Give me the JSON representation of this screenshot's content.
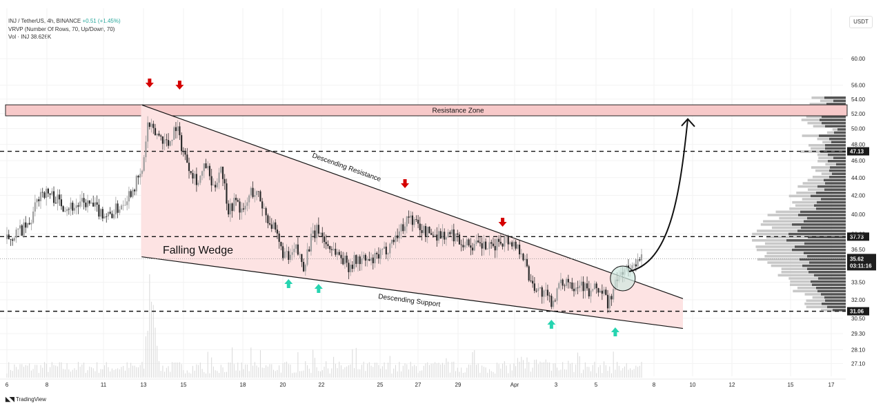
{
  "header": {
    "symbol_line": "INJ / TetherUS, 4h, BINANCE",
    "change": "+0.51 (+1.45%)",
    "vrvp_line": "VRVP (Number Of Rows, 70, Up/Down, 70)",
    "vol_line": "Vol · INJ  38.626K"
  },
  "currency_button": "USDT",
  "brand": "TradingView",
  "chart_data": {
    "type": "candlestick",
    "title": "",
    "y_scale": "log",
    "ylim": [
      26.5,
      63
    ],
    "y_ticks": [
      {
        "value": 60,
        "label": "60.00"
      },
      {
        "value": 56,
        "label": "56.00"
      },
      {
        "value": 54,
        "label": "54.00"
      },
      {
        "value": 52,
        "label": "52.00"
      },
      {
        "value": 50,
        "label": "50.00"
      },
      {
        "value": 48,
        "label": "48.00"
      },
      {
        "value": 46,
        "label": "46.00"
      },
      {
        "value": 44,
        "label": "44.00"
      },
      {
        "value": 42,
        "label": "42.00"
      },
      {
        "value": 40,
        "label": "40.00"
      },
      {
        "value": 38,
        "label": "38.00"
      },
      {
        "value": 36.5,
        "label": "36.50"
      },
      {
        "value": 33.5,
        "label": "33.50"
      },
      {
        "value": 32,
        "label": "32.00"
      },
      {
        "value": 30.5,
        "label": "30.50"
      },
      {
        "value": 29.3,
        "label": "29.30"
      },
      {
        "value": 28.1,
        "label": "28.10"
      },
      {
        "value": 27.1,
        "label": "27.10"
      }
    ],
    "x_ticks": [
      "6",
      "8",
      "11",
      "13",
      "15",
      "18",
      "20",
      "22",
      "25",
      "27",
      "29",
      "Apr",
      "3",
      "5",
      "8",
      "10",
      "12",
      "15",
      "17"
    ],
    "key_levels": [
      {
        "value": 47.13,
        "label": "47.13"
      },
      {
        "value": 37.73,
        "label": "37.73"
      },
      {
        "value": 31.06,
        "label": "31.06"
      }
    ],
    "last_price": {
      "label": "35.62",
      "countdown": "03:11:16",
      "value": 35.62
    },
    "resistance_zone": {
      "low": 51.7,
      "high": 53.2,
      "label": "Resistance Zone"
    },
    "wedge": {
      "upper_start": 53.2,
      "upper_end": 32.1,
      "lower_start": 35.8,
      "lower_end": 29.7
    },
    "annotations": {
      "falling_wedge": "Falling Wedge",
      "descending_resistance": "Descending Resistance",
      "descending_support": "Descending Support"
    },
    "close_path": [
      [
        0,
        37.5
      ],
      [
        6,
        38.2
      ],
      [
        12,
        38.8
      ],
      [
        18,
        42.5
      ],
      [
        24,
        42
      ],
      [
        30,
        41
      ],
      [
        36,
        40.8
      ],
      [
        42,
        41.2
      ],
      [
        48,
        40.5
      ],
      [
        54,
        39.8
      ],
      [
        60,
        40.8
      ],
      [
        66,
        42.5
      ],
      [
        72,
        44.5
      ],
      [
        75,
        50.5
      ],
      [
        78,
        49.5
      ],
      [
        82,
        49
      ],
      [
        86,
        48
      ],
      [
        90,
        50.5
      ],
      [
        94,
        47
      ],
      [
        98,
        45
      ],
      [
        102,
        43.5
      ],
      [
        106,
        45.5
      ],
      [
        110,
        42.5
      ],
      [
        114,
        45.5
      ],
      [
        118,
        40.5
      ],
      [
        122,
        41.5
      ],
      [
        126,
        40
      ],
      [
        130,
        42.5
      ],
      [
        134,
        42
      ],
      [
        138,
        40
      ],
      [
        142,
        38.5
      ],
      [
        146,
        36.5
      ],
      [
        150,
        35.5
      ],
      [
        154,
        36.5
      ],
      [
        158,
        35
      ],
      [
        162,
        37.5
      ],
      [
        166,
        38.5
      ],
      [
        170,
        37
      ],
      [
        174,
        36.5
      ],
      [
        178,
        35.8
      ],
      [
        182,
        35
      ],
      [
        186,
        35.5
      ],
      [
        190,
        35.5
      ],
      [
        194,
        35.3
      ],
      [
        198,
        35.8
      ],
      [
        202,
        36.5
      ],
      [
        206,
        37.5
      ],
      [
        210,
        38.5
      ],
      [
        214,
        39.8
      ],
      [
        218,
        39
      ],
      [
        222,
        38.3
      ],
      [
        226,
        38
      ],
      [
        230,
        38
      ],
      [
        234,
        37.8
      ],
      [
        238,
        37.9
      ],
      [
        242,
        37.3
      ],
      [
        246,
        37
      ],
      [
        250,
        36.8
      ],
      [
        254,
        36.8
      ],
      [
        258,
        36.5
      ],
      [
        262,
        37.3
      ],
      [
        266,
        37.5
      ],
      [
        270,
        37
      ],
      [
        274,
        36.5
      ],
      [
        278,
        34
      ],
      [
        282,
        33
      ],
      [
        286,
        32.5
      ],
      [
        290,
        31.8
      ],
      [
        294,
        33
      ],
      [
        298,
        33.8
      ],
      [
        302,
        33.3
      ],
      [
        306,
        33.5
      ],
      [
        310,
        32.5
      ],
      [
        314,
        33
      ],
      [
        318,
        32.5
      ],
      [
        320,
        31.6
      ],
      [
        323,
        32.8
      ],
      [
        326,
        34
      ],
      [
        329,
        34.8
      ],
      [
        332,
        34.3
      ],
      [
        334,
        35.5
      ],
      [
        336,
        35.2
      ],
      [
        338,
        35.6
      ]
    ],
    "up_arrows": [
      150,
      166,
      290,
      324
    ],
    "down_arrows": [
      76,
      92,
      212,
      264
    ],
    "breakout_circle": 328,
    "projection_target": 52.2,
    "volume_profile_note": "volume-by-price histogram on the right"
  }
}
